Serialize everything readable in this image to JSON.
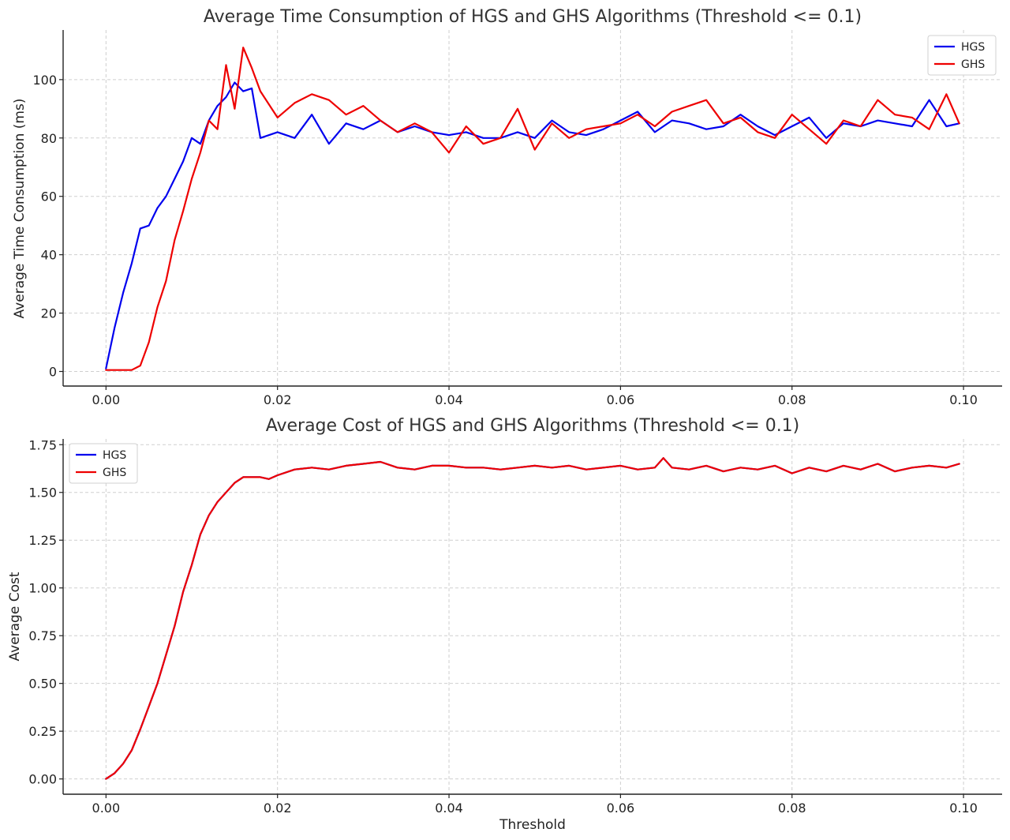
{
  "colors": {
    "hgs": "#0000ee",
    "ghs": "#ee0000"
  },
  "chart_data": [
    {
      "type": "line",
      "title": "Average Time Consumption of HGS and GHS Algorithms (Threshold <= 0.1)",
      "xlabel": "",
      "ylabel": "Average Time Consumption (ms)",
      "xlim": [
        -0.005,
        0.1045
      ],
      "ylim": [
        -5,
        117
      ],
      "xticks": [
        0.0,
        0.02,
        0.04,
        0.06,
        0.08,
        0.1
      ],
      "xtick_labels": [
        "0.00",
        "0.02",
        "0.04",
        "0.06",
        "0.08",
        "0.10"
      ],
      "yticks": [
        0,
        20,
        40,
        60,
        80,
        100
      ],
      "ytick_labels": [
        "0",
        "20",
        "40",
        "60",
        "80",
        "100"
      ],
      "grid": true,
      "legend_position": "top-right",
      "series": [
        {
          "name": "HGS",
          "x": [
            0.0,
            0.001,
            0.002,
            0.003,
            0.004,
            0.005,
            0.006,
            0.007,
            0.008,
            0.009,
            0.01,
            0.011,
            0.012,
            0.013,
            0.014,
            0.015,
            0.016,
            0.017,
            0.018,
            0.02,
            0.022,
            0.024,
            0.026,
            0.028,
            0.03,
            0.032,
            0.034,
            0.036,
            0.038,
            0.04,
            0.042,
            0.044,
            0.046,
            0.048,
            0.05,
            0.052,
            0.054,
            0.056,
            0.058,
            0.06,
            0.062,
            0.064,
            0.066,
            0.068,
            0.07,
            0.072,
            0.074,
            0.076,
            0.078,
            0.08,
            0.082,
            0.084,
            0.086,
            0.088,
            0.09,
            0.092,
            0.094,
            0.096,
            0.098,
            0.0995
          ],
          "y": [
            1,
            15,
            27,
            37,
            49,
            50,
            56,
            60,
            66,
            72,
            80,
            78,
            86,
            91,
            94,
            99,
            96,
            97,
            80,
            82,
            80,
            88,
            78,
            85,
            83,
            86,
            82,
            84,
            82,
            81,
            82,
            80,
            80,
            82,
            80,
            86,
            82,
            81,
            83,
            86,
            89,
            82,
            86,
            85,
            83,
            84,
            88,
            84,
            81,
            84,
            87,
            80,
            85,
            84,
            86,
            85,
            84,
            93,
            84,
            85
          ]
        },
        {
          "name": "GHS",
          "x": [
            0.0,
            0.001,
            0.002,
            0.003,
            0.004,
            0.005,
            0.006,
            0.007,
            0.008,
            0.009,
            0.01,
            0.011,
            0.012,
            0.013,
            0.014,
            0.015,
            0.016,
            0.017,
            0.018,
            0.02,
            0.022,
            0.024,
            0.026,
            0.028,
            0.03,
            0.032,
            0.034,
            0.036,
            0.038,
            0.04,
            0.042,
            0.044,
            0.046,
            0.048,
            0.05,
            0.052,
            0.054,
            0.056,
            0.058,
            0.06,
            0.062,
            0.064,
            0.066,
            0.068,
            0.07,
            0.072,
            0.074,
            0.076,
            0.078,
            0.08,
            0.082,
            0.084,
            0.086,
            0.088,
            0.09,
            0.092,
            0.094,
            0.096,
            0.098,
            0.0995
          ],
          "y": [
            0.5,
            0.5,
            0.5,
            0.5,
            2,
            10,
            22,
            31,
            45,
            55,
            66,
            75,
            86,
            83,
            105,
            90,
            111,
            104,
            96,
            87,
            92,
            95,
            93,
            88,
            91,
            86,
            82,
            85,
            82,
            75,
            84,
            78,
            80,
            90,
            76,
            85,
            80,
            83,
            84,
            85,
            88,
            84,
            89,
            91,
            93,
            85,
            87,
            82,
            80,
            88,
            83,
            78,
            86,
            84,
            93,
            88,
            87,
            83,
            95,
            85
          ]
        }
      ]
    },
    {
      "type": "line",
      "title": "Average Cost of HGS and GHS Algorithms (Threshold <= 0.1)",
      "xlabel": "Threshold",
      "ylabel": "Average Cost",
      "xlim": [
        -0.005,
        0.1045
      ],
      "ylim": [
        -0.08,
        1.78
      ],
      "xticks": [
        0.0,
        0.02,
        0.04,
        0.06,
        0.08,
        0.1
      ],
      "xtick_labels": [
        "0.00",
        "0.02",
        "0.04",
        "0.06",
        "0.08",
        "0.10"
      ],
      "yticks": [
        0.0,
        0.25,
        0.5,
        0.75,
        1.0,
        1.25,
        1.5,
        1.75
      ],
      "ytick_labels": [
        "0.00",
        "0.25",
        "0.50",
        "0.75",
        "1.00",
        "1.25",
        "1.50",
        "1.75"
      ],
      "grid": true,
      "legend_position": "top-left",
      "series": [
        {
          "name": "HGS",
          "x": [
            0.0,
            0.001,
            0.002,
            0.003,
            0.004,
            0.005,
            0.006,
            0.007,
            0.008,
            0.009,
            0.01,
            0.011,
            0.012,
            0.013,
            0.014,
            0.015,
            0.016,
            0.017,
            0.018,
            0.019,
            0.02,
            0.022,
            0.024,
            0.026,
            0.028,
            0.03,
            0.032,
            0.034,
            0.036,
            0.038,
            0.04,
            0.042,
            0.044,
            0.046,
            0.048,
            0.05,
            0.052,
            0.054,
            0.056,
            0.058,
            0.06,
            0.062,
            0.064,
            0.065,
            0.066,
            0.068,
            0.07,
            0.072,
            0.074,
            0.076,
            0.078,
            0.08,
            0.082,
            0.084,
            0.086,
            0.088,
            0.09,
            0.092,
            0.094,
            0.096,
            0.098,
            0.0995
          ],
          "y": [
            0.0,
            0.03,
            0.08,
            0.15,
            0.26,
            0.38,
            0.5,
            0.65,
            0.8,
            0.98,
            1.12,
            1.28,
            1.38,
            1.45,
            1.5,
            1.55,
            1.58,
            1.58,
            1.58,
            1.57,
            1.59,
            1.62,
            1.63,
            1.62,
            1.64,
            1.65,
            1.66,
            1.63,
            1.62,
            1.64,
            1.64,
            1.63,
            1.63,
            1.62,
            1.63,
            1.64,
            1.63,
            1.64,
            1.62,
            1.63,
            1.64,
            1.62,
            1.63,
            1.68,
            1.63,
            1.62,
            1.64,
            1.61,
            1.63,
            1.62,
            1.64,
            1.6,
            1.63,
            1.61,
            1.64,
            1.62,
            1.65,
            1.61,
            1.63,
            1.64,
            1.63,
            1.65
          ]
        },
        {
          "name": "GHS",
          "x": [
            0.0,
            0.001,
            0.002,
            0.003,
            0.004,
            0.005,
            0.006,
            0.007,
            0.008,
            0.009,
            0.01,
            0.011,
            0.012,
            0.013,
            0.014,
            0.015,
            0.016,
            0.017,
            0.018,
            0.019,
            0.02,
            0.022,
            0.024,
            0.026,
            0.028,
            0.03,
            0.032,
            0.034,
            0.036,
            0.038,
            0.04,
            0.042,
            0.044,
            0.046,
            0.048,
            0.05,
            0.052,
            0.054,
            0.056,
            0.058,
            0.06,
            0.062,
            0.064,
            0.065,
            0.066,
            0.068,
            0.07,
            0.072,
            0.074,
            0.076,
            0.078,
            0.08,
            0.082,
            0.084,
            0.086,
            0.088,
            0.09,
            0.092,
            0.094,
            0.096,
            0.098,
            0.0995
          ],
          "y": [
            0.0,
            0.03,
            0.08,
            0.15,
            0.26,
            0.38,
            0.5,
            0.65,
            0.8,
            0.98,
            1.12,
            1.28,
            1.38,
            1.45,
            1.5,
            1.55,
            1.58,
            1.58,
            1.58,
            1.57,
            1.59,
            1.62,
            1.63,
            1.62,
            1.64,
            1.65,
            1.66,
            1.63,
            1.62,
            1.64,
            1.64,
            1.63,
            1.63,
            1.62,
            1.63,
            1.64,
            1.63,
            1.64,
            1.62,
            1.63,
            1.64,
            1.62,
            1.63,
            1.68,
            1.63,
            1.62,
            1.64,
            1.61,
            1.63,
            1.62,
            1.64,
            1.6,
            1.63,
            1.61,
            1.64,
            1.62,
            1.65,
            1.61,
            1.63,
            1.64,
            1.63,
            1.65
          ]
        }
      ]
    }
  ]
}
